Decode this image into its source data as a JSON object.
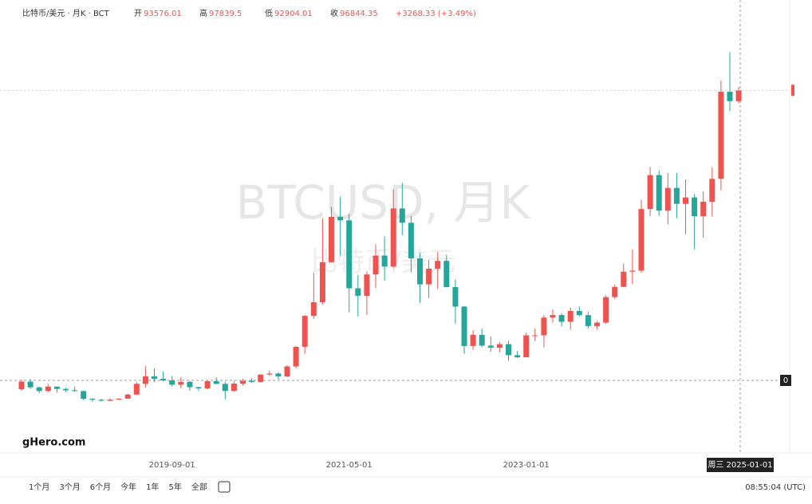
{
  "chart_data": {
    "type": "candlestick",
    "title": "比特币/美元 · 月K · BCT",
    "ohlc_legend": [
      {
        "label": "开",
        "value": 93576.01
      },
      {
        "label": "高",
        "value": 97839.5
      },
      {
        "label": "低",
        "value": 92904.01
      },
      {
        "label": "收",
        "value": 96844.35
      }
    ],
    "change_text": "+3268.33 (+3.49%)",
    "watermark": "BTCUSD, 月K",
    "watermark_sub": "比特币/美元",
    "logo": "gHero.com",
    "crosshair_label": "周三 2025-01-01",
    "crosshair_price_label": "0",
    "up_color": "#ef5350",
    "down_color": "#26a69a",
    "ylim": [
      0,
      124000
    ],
    "categories": [
      null,
      null,
      null,
      null,
      null,
      null,
      null,
      null,
      null,
      null,
      null,
      null,
      null,
      null,
      null,
      null,
      null,
      "2019-09-01",
      null,
      null,
      null,
      null,
      null,
      null,
      null,
      null,
      null,
      null,
      null,
      null,
      null,
      null,
      null,
      null,
      null,
      null,
      null,
      "2021-05-01",
      null,
      null,
      null,
      null,
      null,
      null,
      null,
      null,
      null,
      null,
      null,
      null,
      null,
      null,
      null,
      null,
      null,
      null,
      null,
      "2023-01-01",
      null,
      null,
      null,
      null,
      null,
      null,
      null,
      null,
      null,
      null,
      null,
      null,
      null,
      null,
      null,
      null,
      null,
      null,
      null,
      null,
      null,
      null,
      null,
      null
    ],
    "open": [
      6930,
      9240,
      7500,
      6390,
      7730,
      7030,
      6630,
      6370,
      4040,
      3740,
      3460,
      3820,
      4100,
      5320,
      8570,
      10820,
      10090,
      9600,
      8290,
      9150,
      7550,
      7190,
      9350,
      8540,
      6410,
      8630,
      9450,
      9140,
      11350,
      11650,
      10780,
      13800,
      19700,
      28990,
      33110,
      45140,
      58790,
      57720,
      37300,
      35040,
      41460,
      47130,
      43820,
      61300,
      57000,
      46300,
      38480,
      43190,
      45540,
      37640,
      31790,
      19930,
      23300,
      20050,
      19430,
      20490,
      17170,
      16550,
      23140,
      23150,
      28480,
      29250,
      27220,
      30480,
      29230,
      25930,
      26960,
      34640,
      37720,
      42280,
      42580,
      61130,
      71330,
      60640,
      67490,
      62680,
      64620,
      58970,
      63330,
      70220,
      96410,
      93576.01
    ],
    "high": [
      9750,
      9990,
      7780,
      8500,
      7760,
      7410,
      7700,
      6580,
      4310,
      4110,
      4200,
      4150,
      5620,
      9100,
      13880,
      13150,
      12330,
      10950,
      10540,
      9510,
      7750,
      9590,
      10500,
      9190,
      9460,
      10080,
      10380,
      11430,
      12470,
      12090,
      14100,
      19860,
      29300,
      41950,
      58350,
      61790,
      64850,
      59590,
      41330,
      42320,
      50500,
      52920,
      67000,
      69000,
      59050,
      47990,
      45850,
      48190,
      47440,
      39980,
      31980,
      24670,
      25210,
      22800,
      21080,
      21480,
      18390,
      23950,
      25250,
      29190,
      31000,
      29820,
      31390,
      31800,
      30200,
      27480,
      35200,
      38400,
      44700,
      48970,
      63900,
      73800,
      72800,
      71950,
      71980,
      70000,
      65600,
      66500,
      73600,
      99800,
      108300,
      97839.5
    ],
    "low": [
      6450,
      7050,
      5780,
      6080,
      5880,
      6120,
      6170,
      3650,
      3160,
      3340,
      3390,
      3730,
      4080,
      5320,
      7450,
      9100,
      9320,
      7730,
      7310,
      6520,
      6430,
      6870,
      8460,
      3860,
      6150,
      8110,
      8820,
      8970,
      10970,
      9880,
      10560,
      13210,
      17570,
      28130,
      32380,
      45000,
      47050,
      30070,
      28800,
      29300,
      37330,
      39600,
      43290,
      53260,
      42000,
      32950,
      34320,
      37160,
      37700,
      26700,
      17600,
      18780,
      19600,
      18200,
      18190,
      15480,
      16330,
      16500,
      21400,
      19570,
      26940,
      25810,
      24800,
      28860,
      25170,
      24900,
      26560,
      34100,
      37620,
      38550,
      41880,
      59000,
      59100,
      56550,
      58400,
      53550,
      49000,
      52550,
      58900,
      66800,
      90500,
      92904.01
    ],
    "close": [
      9240,
      7500,
      6390,
      7730,
      7030,
      6630,
      6370,
      4040,
      3740,
      3460,
      3820,
      4100,
      5320,
      8570,
      10820,
      10090,
      9600,
      8290,
      9150,
      7550,
      7190,
      9350,
      8540,
      6410,
      8630,
      9450,
      9140,
      11350,
      11650,
      10780,
      13800,
      19700,
      28990,
      33110,
      45140,
      58790,
      57720,
      37300,
      35040,
      41460,
      47130,
      43820,
      61300,
      57000,
      46300,
      38480,
      43190,
      45540,
      37640,
      31790,
      19930,
      23300,
      20050,
      19430,
      20490,
      17170,
      16550,
      23140,
      23150,
      28480,
      29250,
      27220,
      30480,
      29230,
      25930,
      26960,
      34640,
      37720,
      42280,
      42580,
      61130,
      71330,
      60640,
      67490,
      62680,
      64620,
      58970,
      63330,
      70220,
      96410,
      93580,
      96844.35
    ]
  },
  "toolbar": {
    "ranges": [
      "1个月",
      "3个月",
      "6个月",
      "今年",
      "1年",
      "5年",
      "全部"
    ],
    "clock": "08:55:04 (UTC)"
  }
}
